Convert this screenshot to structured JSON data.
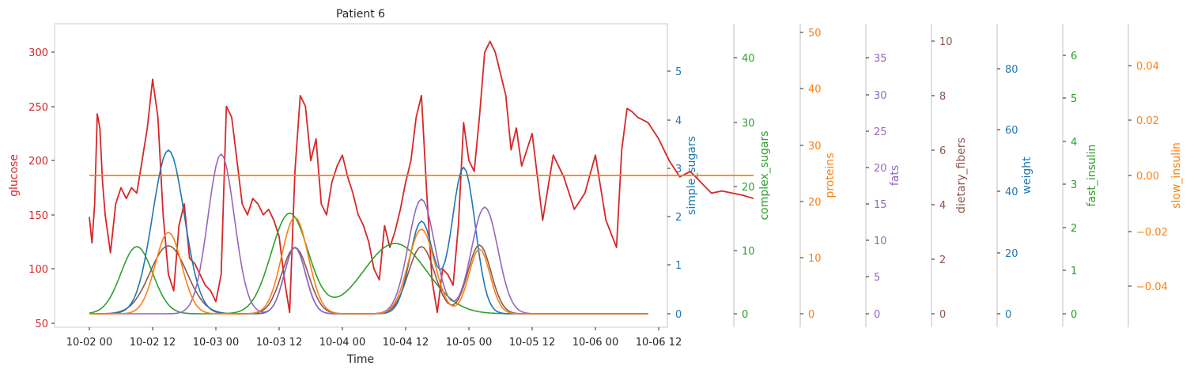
{
  "chart_data": {
    "type": "line",
    "title": "Patient 6",
    "xlabel": "Time",
    "x_ticks": [
      "10-02 00",
      "10-02 12",
      "10-03 00",
      "10-03 12",
      "10-04 00",
      "10-04 12",
      "10-05 00",
      "10-05 12",
      "10-06 00",
      "10-06 12"
    ],
    "grid": false,
    "axes": [
      {
        "name": "glucose",
        "label": "glucose",
        "color": "#d62728",
        "side": "left",
        "ticks": [
          "50",
          "100",
          "150",
          "200",
          "250",
          "300"
        ]
      },
      {
        "name": "simple_sugars",
        "label": "simple_sugars",
        "color": "#1f77b4",
        "side": "right",
        "ticks": [
          "0",
          "1",
          "2",
          "3",
          "4",
          "5"
        ]
      },
      {
        "name": "complex_sugars",
        "label": "complex_sugars",
        "color": "#2ca02c",
        "side": "right",
        "ticks": [
          "0",
          "10",
          "20",
          "30",
          "40"
        ]
      },
      {
        "name": "proteins",
        "label": "proteins",
        "color": "#ff7f0e",
        "side": "right",
        "ticks": [
          "0",
          "10",
          "20",
          "30",
          "40",
          "50"
        ]
      },
      {
        "name": "fats",
        "label": "fats",
        "color": "#9467bd",
        "side": "right",
        "ticks": [
          "0",
          "5",
          "10",
          "15",
          "20",
          "25",
          "30",
          "35"
        ]
      },
      {
        "name": "dietary_fibers",
        "label": "dietary_fibers",
        "color": "#8c564b",
        "side": "right",
        "ticks": [
          "0",
          "2",
          "4",
          "6",
          "8",
          "10"
        ]
      },
      {
        "name": "weight",
        "label": "weight",
        "color": "#1f77b4",
        "side": "right",
        "ticks": [
          "0",
          "20",
          "40",
          "60",
          "80"
        ]
      },
      {
        "name": "fast_insulin",
        "label": "fast_insulin",
        "color": "#2ca02c",
        "side": "right",
        "ticks": [
          "0",
          "1",
          "2",
          "3",
          "4",
          "5",
          "6"
        ]
      },
      {
        "name": "slow_insulin",
        "label": "slow_insulin",
        "color": "#ff7f0e",
        "side": "right",
        "ticks": [
          "−0.04",
          "−0.02",
          "0.00",
          "0.02",
          "0.04"
        ]
      }
    ],
    "series": [
      {
        "name": "glucose",
        "color": "#d62728",
        "x_hours": [
          0,
          0.5,
          1,
          1.5,
          2,
          2.5,
          3,
          4,
          5,
          6,
          7,
          8,
          9,
          10,
          11,
          12,
          13,
          14,
          15,
          16,
          17,
          18,
          19,
          20,
          21,
          22,
          23,
          24,
          25,
          26,
          27,
          28,
          29,
          30,
          31,
          32,
          33,
          34,
          35,
          36,
          37,
          38,
          39,
          40,
          41,
          42,
          43,
          44,
          45,
          46,
          47,
          48,
          49,
          50,
          51,
          52,
          53,
          54,
          55,
          56,
          57,
          58,
          59,
          60,
          61,
          62,
          63,
          64,
          65,
          66,
          67,
          68,
          69,
          70,
          71,
          72,
          73,
          74,
          75,
          76,
          77,
          78,
          79,
          80,
          81,
          82,
          84,
          86,
          88,
          90,
          92,
          94,
          96,
          98,
          100,
          101,
          102,
          103,
          104,
          106,
          108,
          110,
          112,
          114,
          116,
          118,
          120,
          122,
          124,
          126
        ],
        "y": [
          148,
          124,
          160,
          243,
          230,
          180,
          150,
          115,
          160,
          175,
          165,
          175,
          170,
          200,
          230,
          275,
          240,
          150,
          95,
          80,
          140,
          160,
          110,
          105,
          95,
          85,
          80,
          70,
          95,
          250,
          240,
          200,
          160,
          150,
          165,
          160,
          150,
          155,
          145,
          130,
          90,
          60,
          190,
          260,
          250,
          200,
          220,
          160,
          150,
          180,
          195,
          205,
          185,
          170,
          150,
          140,
          125,
          100,
          90,
          140,
          120,
          135,
          155,
          180,
          200,
          240,
          260,
          170,
          90,
          60,
          100,
          95,
          85,
          140,
          235,
          200,
          190,
          240,
          300,
          310,
          300,
          280,
          260,
          210,
          230,
          195,
          225,
          145,
          205,
          185,
          155,
          170,
          205,
          145,
          120,
          210,
          248,
          245,
          240,
          235,
          220,
          200,
          185,
          190,
          180,
          170,
          172,
          170,
          168,
          165
        ]
      },
      {
        "name": "slow_insulin",
        "color": "#ff7f0e",
        "x_hours": [
          0,
          126
        ],
        "y": [
          0.0,
          0.0
        ]
      }
    ]
  }
}
